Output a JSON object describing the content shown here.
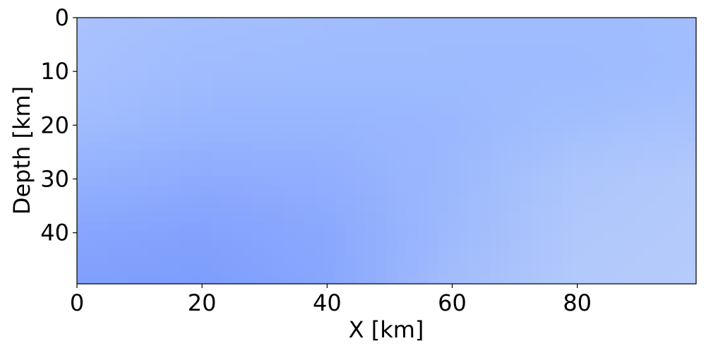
{
  "chart_data": {
    "type": "heatmap",
    "title": "",
    "xlabel": "X [km]",
    "ylabel": "Depth [km]",
    "xlim": [
      0,
      99
    ],
    "ylim": [
      49.5,
      0
    ],
    "y_axis_inverted": true,
    "x_ticks": [
      0,
      20,
      40,
      60,
      80
    ],
    "x_tick_labels": [
      "0",
      "20",
      "40",
      "60",
      "80"
    ],
    "y_ticks": [
      0,
      10,
      20,
      30,
      40
    ],
    "y_tick_labels": [
      "0",
      "10",
      "20",
      "30",
      "40"
    ],
    "grid": false,
    "colormap": "coolwarm",
    "field_samples": {
      "x": [
        0,
        20,
        40,
        60,
        80,
        99
      ],
      "depth": [
        0,
        10,
        20,
        30,
        40,
        49.5
      ],
      "colors": [
        [
          "#aac2fe",
          "#a4bffe",
          "#a1bdfe",
          "#9fbcfe",
          "#9ebcfe",
          "#a1bdfe"
        ],
        [
          "#a7c0fe",
          "#a0bcfe",
          "#9dbbfe",
          "#9dbbfe",
          "#9dbbfe",
          "#a1bdfe"
        ],
        [
          "#a0bcfe",
          "#98b6fe",
          "#97b5fe",
          "#9bb8fe",
          "#a3bffd",
          "#a9c2fd"
        ],
        [
          "#93b1fe",
          "#8eaafe",
          "#91adfe",
          "#9cb9fd",
          "#adc6fb",
          "#b2c9fb"
        ],
        [
          "#87a5fd",
          "#83a2fd",
          "#8aa8fd",
          "#9fbafd",
          "#b0c8fb",
          "#b4cafb"
        ],
        [
          "#80a0fd",
          "#7d9efd",
          "#88a6fd",
          "#a3bdfc",
          "#b3c9fb",
          "#b5cbfb"
        ]
      ]
    }
  }
}
